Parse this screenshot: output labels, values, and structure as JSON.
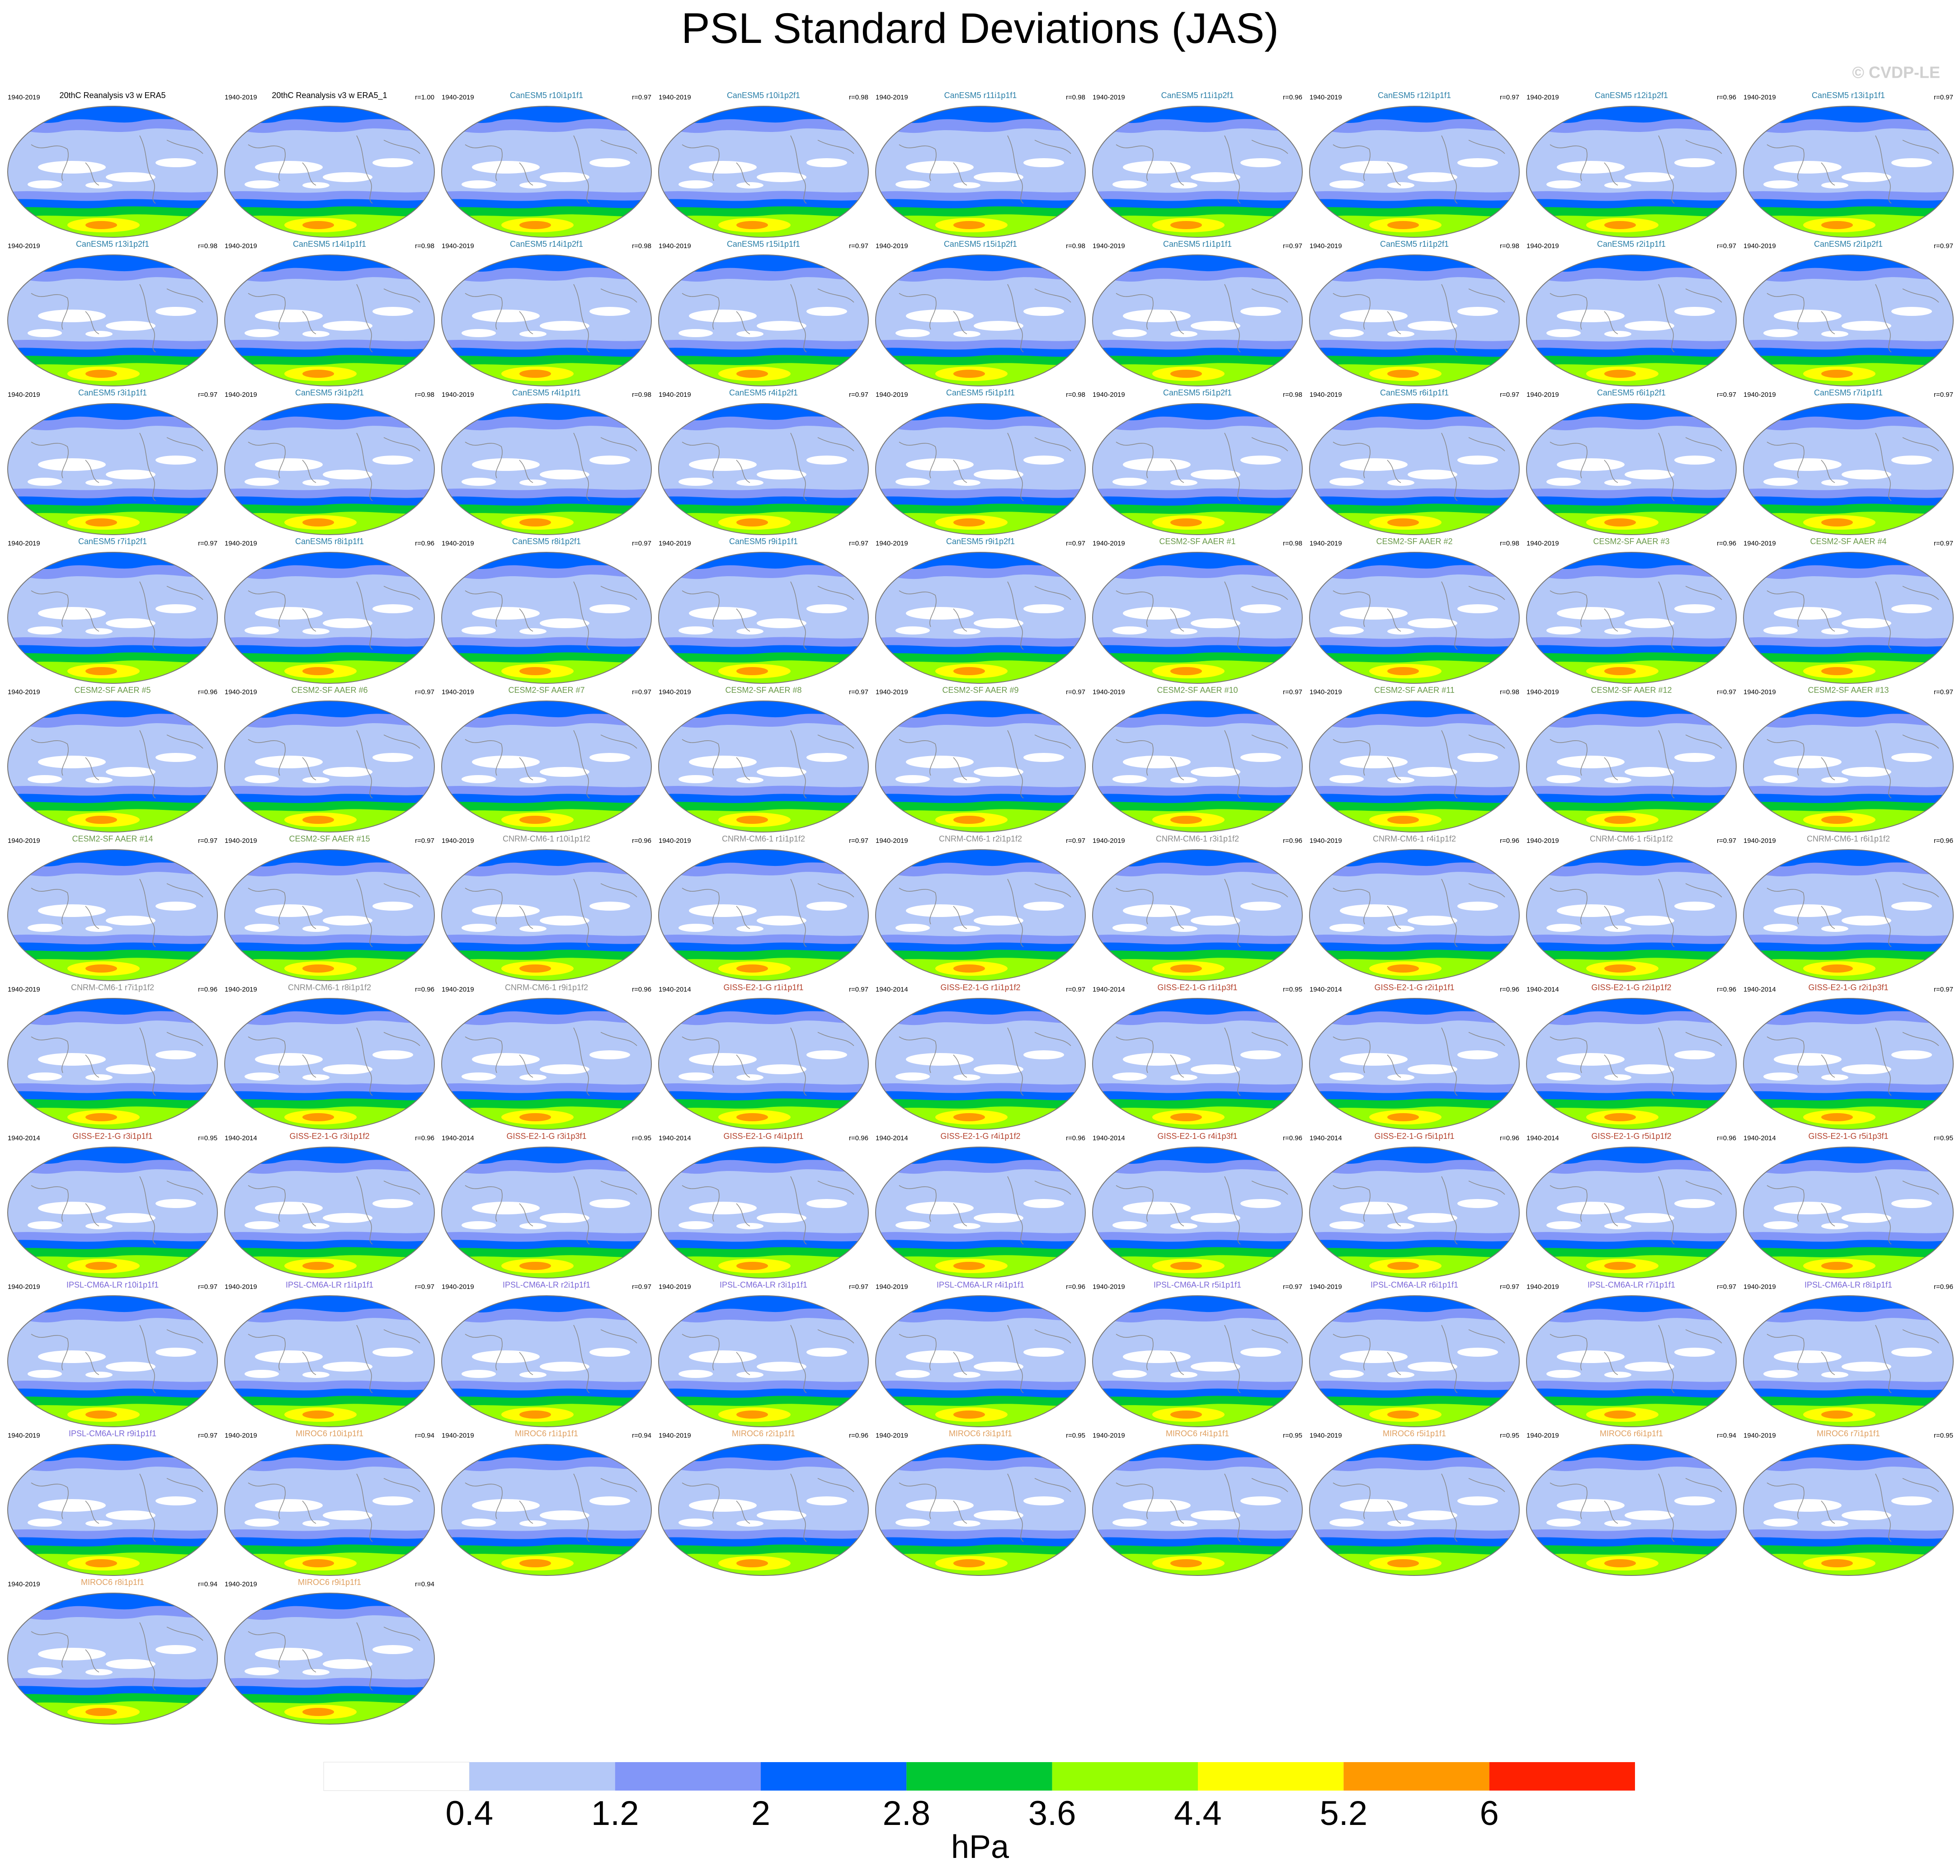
{
  "title": "PSL Standard Deviations (JAS)",
  "copyright": "© CVDP-LE",
  "groups": [
    {
      "color": "#000000",
      "panels": [
        {
          "period": "1940-2019",
          "name": "20thC Reanalysis v3 w ERA5"
        },
        {
          "period": "1940-2019",
          "name": "20thC Reanalysis v3 w ERA5_1",
          "r": "r=1.00"
        }
      ]
    },
    {
      "color": "#2a7fa8",
      "panels": [
        {
          "period": "1940-2019",
          "name": "CanESM5 r10i1p1f1",
          "r": "r=0.97"
        },
        {
          "period": "1940-2019",
          "name": "CanESM5 r10i1p2f1",
          "r": "r=0.98"
        },
        {
          "period": "1940-2019",
          "name": "CanESM5 r11i1p1f1",
          "r": "r=0.98"
        },
        {
          "period": "1940-2019",
          "name": "CanESM5 r11i1p2f1",
          "r": "r=0.96"
        },
        {
          "period": "1940-2019",
          "name": "CanESM5 r12i1p1f1",
          "r": "r=0.97"
        },
        {
          "period": "1940-2019",
          "name": "CanESM5 r12i1p2f1",
          "r": "r=0.96"
        },
        {
          "period": "1940-2019",
          "name": "CanESM5 r13i1p1f1",
          "r": "r=0.97"
        },
        {
          "period": "1940-2019",
          "name": "CanESM5 r13i1p2f1",
          "r": "r=0.98"
        },
        {
          "period": "1940-2019",
          "name": "CanESM5 r14i1p1f1",
          "r": "r=0.98"
        },
        {
          "period": "1940-2019",
          "name": "CanESM5 r14i1p2f1",
          "r": "r=0.98"
        },
        {
          "period": "1940-2019",
          "name": "CanESM5 r15i1p1f1",
          "r": "r=0.97"
        },
        {
          "period": "1940-2019",
          "name": "CanESM5 r15i1p2f1",
          "r": "r=0.98"
        },
        {
          "period": "1940-2019",
          "name": "CanESM5 r1i1p1f1",
          "r": "r=0.97"
        },
        {
          "period": "1940-2019",
          "name": "CanESM5 r1i1p2f1",
          "r": "r=0.98"
        },
        {
          "period": "1940-2019",
          "name": "CanESM5 r2i1p1f1",
          "r": "r=0.97"
        },
        {
          "period": "1940-2019",
          "name": "CanESM5 r2i1p2f1",
          "r": "r=0.97"
        },
        {
          "period": "1940-2019",
          "name": "CanESM5 r3i1p1f1",
          "r": "r=0.97"
        },
        {
          "period": "1940-2019",
          "name": "CanESM5 r3i1p2f1",
          "r": "r=0.98"
        },
        {
          "period": "1940-2019",
          "name": "CanESM5 r4i1p1f1",
          "r": "r=0.98"
        },
        {
          "period": "1940-2019",
          "name": "CanESM5 r4i1p2f1",
          "r": "r=0.97"
        },
        {
          "period": "1940-2019",
          "name": "CanESM5 r5i1p1f1",
          "r": "r=0.98"
        },
        {
          "period": "1940-2019",
          "name": "CanESM5 r5i1p2f1",
          "r": "r=0.98"
        },
        {
          "period": "1940-2019",
          "name": "CanESM5 r6i1p1f1",
          "r": "r=0.97"
        },
        {
          "period": "1940-2019",
          "name": "CanESM5 r6i1p2f1",
          "r": "r=0.97"
        },
        {
          "period": "1940-2019",
          "name": "CanESM5 r7i1p1f1",
          "r": "r=0.97"
        },
        {
          "period": "1940-2019",
          "name": "CanESM5 r7i1p2f1",
          "r": "r=0.97"
        },
        {
          "period": "1940-2019",
          "name": "CanESM5 r8i1p1f1",
          "r": "r=0.96"
        },
        {
          "period": "1940-2019",
          "name": "CanESM5 r8i1p2f1",
          "r": "r=0.97"
        },
        {
          "period": "1940-2019",
          "name": "CanESM5 r9i1p1f1",
          "r": "r=0.97"
        },
        {
          "period": "1940-2019",
          "name": "CanESM5 r9i1p2f1",
          "r": "r=0.97"
        }
      ]
    },
    {
      "color": "#6a9a4a",
      "panels": [
        {
          "period": "1940-2019",
          "name": "CESM2-SF AAER #1",
          "r": "r=0.98"
        },
        {
          "period": "1940-2019",
          "name": "CESM2-SF AAER #2",
          "r": "r=0.98"
        },
        {
          "period": "1940-2019",
          "name": "CESM2-SF AAER #3",
          "r": "r=0.96"
        },
        {
          "period": "1940-2019",
          "name": "CESM2-SF AAER #4",
          "r": "r=0.97"
        },
        {
          "period": "1940-2019",
          "name": "CESM2-SF AAER #5",
          "r": "r=0.96"
        },
        {
          "period": "1940-2019",
          "name": "CESM2-SF AAER #6",
          "r": "r=0.97"
        },
        {
          "period": "1940-2019",
          "name": "CESM2-SF AAER #7",
          "r": "r=0.97"
        },
        {
          "period": "1940-2019",
          "name": "CESM2-SF AAER #8",
          "r": "r=0.97"
        },
        {
          "period": "1940-2019",
          "name": "CESM2-SF AAER #9",
          "r": "r=0.97"
        },
        {
          "period": "1940-2019",
          "name": "CESM2-SF AAER #10",
          "r": "r=0.97"
        },
        {
          "period": "1940-2019",
          "name": "CESM2-SF AAER #11",
          "r": "r=0.98"
        },
        {
          "period": "1940-2019",
          "name": "CESM2-SF AAER #12",
          "r": "r=0.97"
        },
        {
          "period": "1940-2019",
          "name": "CESM2-SF AAER #13",
          "r": "r=0.97"
        },
        {
          "period": "1940-2019",
          "name": "CESM2-SF AAER #14",
          "r": "r=0.97"
        },
        {
          "period": "1940-2019",
          "name": "CESM2-SF AAER #15",
          "r": "r=0.97"
        }
      ]
    },
    {
      "color": "#8a8a8a",
      "panels": [
        {
          "period": "1940-2019",
          "name": "CNRM-CM6-1 r10i1p1f2",
          "r": "r=0.96"
        },
        {
          "period": "1940-2019",
          "name": "CNRM-CM6-1 r1i1p1f2",
          "r": "r=0.97"
        },
        {
          "period": "1940-2019",
          "name": "CNRM-CM6-1 r2i1p1f2",
          "r": "r=0.97"
        },
        {
          "period": "1940-2019",
          "name": "CNRM-CM6-1 r3i1p1f2",
          "r": "r=0.96"
        },
        {
          "period": "1940-2019",
          "name": "CNRM-CM6-1 r4i1p1f2",
          "r": "r=0.96"
        },
        {
          "period": "1940-2019",
          "name": "CNRM-CM6-1 r5i1p1f2",
          "r": "r=0.97"
        },
        {
          "period": "1940-2019",
          "name": "CNRM-CM6-1 r6i1p1f2",
          "r": "r=0.96"
        },
        {
          "period": "1940-2019",
          "name": "CNRM-CM6-1 r7i1p1f2",
          "r": "r=0.96"
        },
        {
          "period": "1940-2019",
          "name": "CNRM-CM6-1 r8i1p1f2",
          "r": "r=0.96"
        },
        {
          "period": "1940-2019",
          "name": "CNRM-CM6-1 r9i1p1f2",
          "r": "r=0.96"
        }
      ]
    },
    {
      "color": "#b5432e",
      "panels": [
        {
          "period": "1940-2014",
          "name": "GISS-E2-1-G r1i1p1f1",
          "r": "r=0.97"
        },
        {
          "period": "1940-2014",
          "name": "GISS-E2-1-G r1i1p1f2",
          "r": "r=0.97"
        },
        {
          "period": "1940-2014",
          "name": "GISS-E2-1-G r1i1p3f1",
          "r": "r=0.95"
        },
        {
          "period": "1940-2014",
          "name": "GISS-E2-1-G r2i1p1f1",
          "r": "r=0.96"
        },
        {
          "period": "1940-2014",
          "name": "GISS-E2-1-G r2i1p1f2",
          "r": "r=0.96"
        },
        {
          "period": "1940-2014",
          "name": "GISS-E2-1-G r2i1p3f1",
          "r": "r=0.97"
        },
        {
          "period": "1940-2014",
          "name": "GISS-E2-1-G r3i1p1f1",
          "r": "r=0.95"
        },
        {
          "period": "1940-2014",
          "name": "GISS-E2-1-G r3i1p1f2",
          "r": "r=0.96"
        },
        {
          "period": "1940-2014",
          "name": "GISS-E2-1-G r3i1p3f1",
          "r": "r=0.95"
        },
        {
          "period": "1940-2014",
          "name": "GISS-E2-1-G r4i1p1f1",
          "r": "r=0.96"
        },
        {
          "period": "1940-2014",
          "name": "GISS-E2-1-G r4i1p1f2",
          "r": "r=0.96"
        },
        {
          "period": "1940-2014",
          "name": "GISS-E2-1-G r4i1p3f1",
          "r": "r=0.96"
        },
        {
          "period": "1940-2014",
          "name": "GISS-E2-1-G r5i1p1f1",
          "r": "r=0.96"
        },
        {
          "period": "1940-2014",
          "name": "GISS-E2-1-G r5i1p1f2",
          "r": "r=0.96"
        },
        {
          "period": "1940-2014",
          "name": "GISS-E2-1-G r5i1p3f1",
          "r": "r=0.95"
        }
      ]
    },
    {
      "color": "#7b68d8",
      "panels": [
        {
          "period": "1940-2019",
          "name": "IPSL-CM6A-LR r10i1p1f1",
          "r": "r=0.97"
        },
        {
          "period": "1940-2019",
          "name": "IPSL-CM6A-LR r1i1p1f1",
          "r": "r=0.97"
        },
        {
          "period": "1940-2019",
          "name": "IPSL-CM6A-LR r2i1p1f1",
          "r": "r=0.97"
        },
        {
          "period": "1940-2019",
          "name": "IPSL-CM6A-LR r3i1p1f1",
          "r": "r=0.97"
        },
        {
          "period": "1940-2019",
          "name": "IPSL-CM6A-LR r4i1p1f1",
          "r": "r=0.96"
        },
        {
          "period": "1940-2019",
          "name": "IPSL-CM6A-LR r5i1p1f1",
          "r": "r=0.97"
        },
        {
          "period": "1940-2019",
          "name": "IPSL-CM6A-LR r6i1p1f1",
          "r": "r=0.97"
        },
        {
          "period": "1940-2019",
          "name": "IPSL-CM6A-LR r7i1p1f1",
          "r": "r=0.97"
        },
        {
          "period": "1940-2019",
          "name": "IPSL-CM6A-LR r8i1p1f1",
          "r": "r=0.96"
        },
        {
          "period": "1940-2019",
          "name": "IPSL-CM6A-LR r9i1p1f1",
          "r": "r=0.97"
        }
      ]
    },
    {
      "color": "#e0a060",
      "panels": [
        {
          "period": "1940-2019",
          "name": "MIROC6 r10i1p1f1",
          "r": "r=0.94"
        },
        {
          "period": "1940-2019",
          "name": "MIROC6 r1i1p1f1",
          "r": "r=0.94"
        },
        {
          "period": "1940-2019",
          "name": "MIROC6 r2i1p1f1",
          "r": "r=0.96"
        },
        {
          "period": "1940-2019",
          "name": "MIROC6 r3i1p1f1",
          "r": "r=0.95"
        },
        {
          "period": "1940-2019",
          "name": "MIROC6 r4i1p1f1",
          "r": "r=0.95"
        },
        {
          "period": "1940-2019",
          "name": "MIROC6 r5i1p1f1",
          "r": "r=0.95"
        },
        {
          "period": "1940-2019",
          "name": "MIROC6 r6i1p1f1",
          "r": "r=0.94"
        },
        {
          "period": "1940-2019",
          "name": "MIROC6 r7i1p1f1",
          "r": "r=0.95"
        },
        {
          "period": "1940-2019",
          "name": "MIROC6 r8i1p1f1",
          "r": "r=0.94"
        },
        {
          "period": "1940-2019",
          "name": "MIROC6 r9i1p1f1",
          "r": "r=0.94"
        }
      ]
    }
  ],
  "colorbar": {
    "colors": [
      "#ffffff",
      "#b4c8f8",
      "#8296f8",
      "#0064ff",
      "#00c832",
      "#96ff00",
      "#ffff00",
      "#ff9900",
      "#ff2000"
    ],
    "labels": [
      0.4,
      1.2,
      2,
      2.8,
      3.6,
      4.4,
      5.2,
      6
    ],
    "unit": "hPa"
  }
}
